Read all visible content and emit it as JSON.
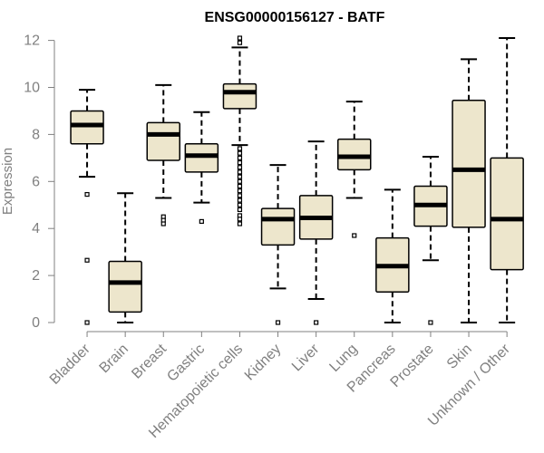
{
  "chart_data": {
    "type": "boxplot",
    "title": "ENSG00000156127 - BATF",
    "ylabel": "Expression",
    "xlabel": "",
    "ylim": [
      0,
      12.4
    ],
    "yticks": [
      0,
      2,
      4,
      6,
      8,
      10,
      12
    ],
    "box_fill": "#ede6cc",
    "categories": [
      "Bladder",
      "Brain",
      "Breast",
      "Gastric",
      "Hematopoietic cells",
      "Kidney",
      "Liver",
      "Lung",
      "Pancreas",
      "Prostate",
      "Skin",
      "Unknown / Other"
    ],
    "boxes": [
      {
        "whisker_low": 6.2,
        "q1": 7.6,
        "median": 8.4,
        "q3": 9.0,
        "whisker_high": 9.9,
        "outliers": [
          5.45,
          2.65,
          0.0
        ]
      },
      {
        "whisker_low": 0.0,
        "q1": 0.45,
        "median": 1.7,
        "q3": 2.6,
        "whisker_high": 5.5,
        "outliers": []
      },
      {
        "whisker_low": 5.3,
        "q1": 6.9,
        "median": 8.0,
        "q3": 8.5,
        "whisker_high": 10.1,
        "outliers": [
          4.5,
          4.35,
          4.2
        ]
      },
      {
        "whisker_low": 5.1,
        "q1": 6.4,
        "median": 7.1,
        "q3": 7.6,
        "whisker_high": 8.95,
        "outliers": [
          4.3
        ]
      },
      {
        "whisker_low": 7.55,
        "q1": 9.1,
        "median": 9.8,
        "q3": 10.15,
        "whisker_high": 11.7,
        "outliers": [
          12.1,
          11.9,
          7.4,
          7.2,
          7.0,
          6.8,
          6.6,
          6.4,
          6.2,
          6.0,
          5.8,
          5.6,
          5.4,
          5.2,
          5.0,
          4.8,
          4.55,
          4.4,
          4.2
        ]
      },
      {
        "whisker_low": 1.45,
        "q1": 3.3,
        "median": 4.4,
        "q3": 4.85,
        "whisker_high": 6.7,
        "outliers": [
          0.0
        ]
      },
      {
        "whisker_low": 1.0,
        "q1": 3.55,
        "median": 4.45,
        "q3": 5.4,
        "whisker_high": 7.7,
        "outliers": [
          0.0
        ]
      },
      {
        "whisker_low": 5.3,
        "q1": 6.5,
        "median": 7.05,
        "q3": 7.8,
        "whisker_high": 9.4,
        "outliers": [
          3.7
        ]
      },
      {
        "whisker_low": 0.0,
        "q1": 1.3,
        "median": 2.4,
        "q3": 3.6,
        "whisker_high": 5.65,
        "outliers": []
      },
      {
        "whisker_low": 2.65,
        "q1": 4.1,
        "median": 5.0,
        "q3": 5.8,
        "whisker_high": 7.05,
        "outliers": [
          0.0
        ]
      },
      {
        "whisker_low": 0.0,
        "q1": 4.05,
        "median": 6.5,
        "q3": 9.45,
        "whisker_high": 11.2,
        "outliers": []
      },
      {
        "whisker_low": 0.0,
        "q1": 2.25,
        "median": 4.4,
        "q3": 7.0,
        "whisker_high": 12.1,
        "outliers": []
      }
    ]
  }
}
